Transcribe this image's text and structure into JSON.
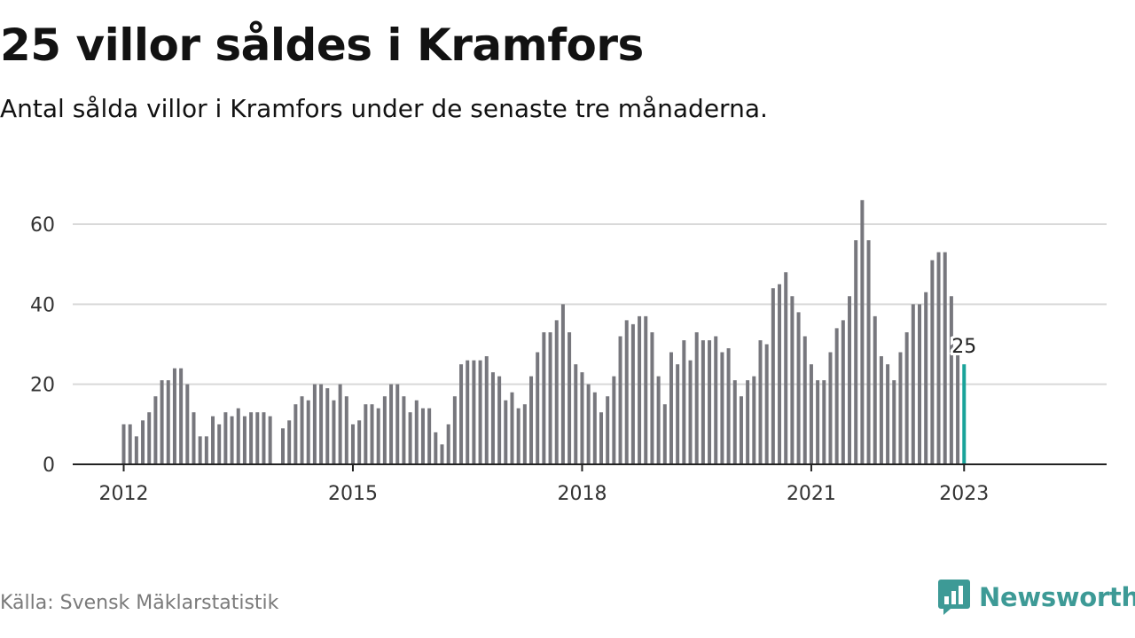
{
  "title": "25 villor såldes i Kramfors",
  "subtitle": "Antal sålda villor i Kramfors under de senaste tre månaderna.",
  "source": "Källa: Svensk Mäklarstatistik",
  "brand": {
    "name": "Newsworthy",
    "icon": "bar-chart-badge-icon",
    "color": "#3d9a96"
  },
  "colors": {
    "bar": "#77777d",
    "highlight": "#1aa39a",
    "grid": "#d9d9d9",
    "axis": "#222222"
  },
  "chart_data": {
    "type": "bar",
    "title": "25 villor såldes i Kramfors",
    "xlabel": "",
    "ylabel": "",
    "ylim": [
      0,
      70
    ],
    "yticks": [
      0,
      20,
      40,
      60
    ],
    "grid": true,
    "x_tick_labels": [
      {
        "label": "2012",
        "year": 2012
      },
      {
        "label": "2015",
        "year": 2015
      },
      {
        "label": "2018",
        "year": 2018
      },
      {
        "label": "2021",
        "year": 2021
      },
      {
        "label": "2023",
        "year": 2023
      }
    ],
    "series": [
      {
        "start": "2012-01",
        "values": [
          10,
          10,
          7,
          11,
          13,
          17,
          21,
          21,
          24,
          24,
          20,
          13,
          7,
          7,
          12,
          10,
          13,
          12,
          14,
          12,
          13,
          13,
          13,
          12,
          null,
          9,
          11,
          15,
          17,
          16,
          20,
          20,
          19,
          16,
          20,
          17,
          10,
          11,
          15,
          15,
          14,
          17,
          20,
          20,
          17,
          13,
          16,
          14,
          14,
          8,
          5,
          10,
          17,
          25,
          26,
          26,
          26,
          27,
          23,
          22,
          16,
          18,
          14,
          15,
          22,
          28,
          33,
          33,
          36,
          40,
          33,
          25,
          23,
          20,
          18,
          13,
          17,
          22,
          32,
          36,
          35,
          37,
          37,
          33,
          22,
          15,
          28,
          25,
          31,
          26,
          33,
          31,
          31,
          32,
          28,
          29,
          21,
          17,
          21,
          22,
          31,
          30,
          44,
          45,
          48,
          42,
          38,
          32,
          25,
          21,
          21,
          28,
          34,
          36,
          42,
          56,
          66,
          56,
          37,
          27,
          25,
          21,
          28,
          33,
          40,
          40,
          43,
          51,
          53,
          53,
          42,
          28,
          25
        ]
      }
    ],
    "highlight": {
      "date": "2023-01",
      "value": 25,
      "label": "25"
    }
  }
}
